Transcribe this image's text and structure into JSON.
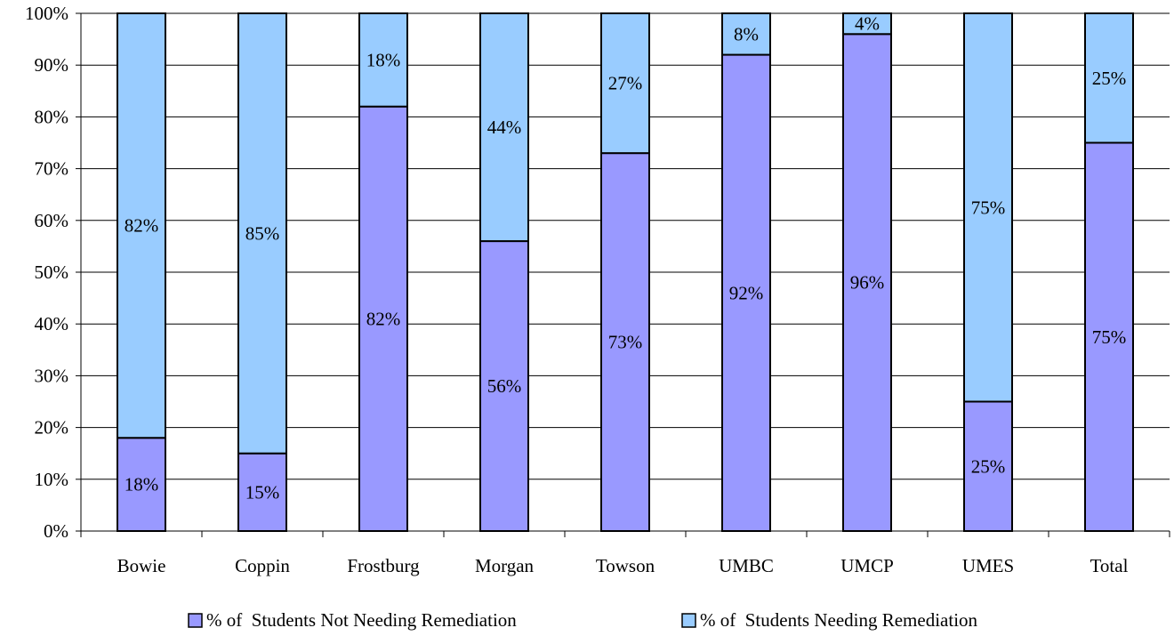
{
  "chart_data": {
    "type": "bar",
    "stacked": true,
    "percent_stacked": true,
    "categories": [
      "Bowie",
      "Coppin",
      "Frostburg",
      "Morgan",
      "Towson",
      "UMBC",
      "UMCP",
      "UMES",
      "Total"
    ],
    "series": [
      {
        "name": "% of  Students Not Needing Remediation",
        "values": [
          18,
          15,
          82,
          56,
          73,
          92,
          96,
          25,
          75
        ],
        "labels": [
          "18%",
          "15%",
          "82%",
          "56%",
          "73%",
          "92%",
          "96%",
          "25%",
          "75%"
        ],
        "color": "#9999ff"
      },
      {
        "name": "% of  Students Needing Remediation",
        "values": [
          82,
          85,
          18,
          44,
          27,
          8,
          4,
          75,
          25
        ],
        "labels": [
          "82%",
          "85%",
          "18%",
          "44%",
          "27%",
          "8%",
          "4%",
          "75%",
          "25%"
        ],
        "color": "#99ccff"
      }
    ],
    "y_ticks": [
      "0%",
      "10%",
      "20%",
      "30%",
      "40%",
      "50%",
      "60%",
      "70%",
      "80%",
      "90%",
      "100%"
    ],
    "ylim": [
      0,
      100
    ],
    "grid": true,
    "legend_position": "bottom"
  }
}
